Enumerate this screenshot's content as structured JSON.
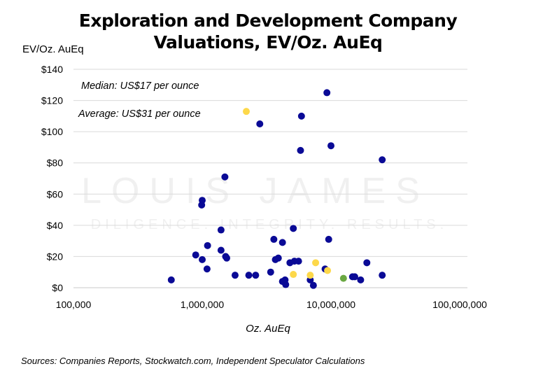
{
  "chart_data": {
    "type": "scatter",
    "title_line1": "Exploration and Development Company",
    "title_line2": "Valuations, EV/Oz. AuEq",
    "xlabel": "Oz. AuEq",
    "ylabel": "EV/Oz. AuEq",
    "xscale": "log",
    "xlim": [
      100000,
      100000000
    ],
    "ylim": [
      0,
      140
    ],
    "x_ticks": [
      100000,
      1000000,
      10000000,
      100000000
    ],
    "x_tick_labels": [
      "100,000",
      "1,000,000",
      "10,000,000",
      "100,000,000"
    ],
    "y_ticks": [
      0,
      20,
      40,
      60,
      80,
      100,
      120,
      140
    ],
    "y_tick_labels": [
      "$0",
      "$20",
      "$40",
      "$60",
      "$80",
      "$100",
      "$120",
      "$140"
    ],
    "grid": "horizontal",
    "annotations": [
      "Median: US$17 per ounce",
      "Average: US$31 per ounce"
    ],
    "source": "Sources: Companies Reports, Stockwatch.com, Independent Speculator Calculations",
    "watermark": [
      "LOUIS JAMES",
      "DILIGENCE. INTEGRITY. RESULTS."
    ],
    "colors": {
      "blue": "#0a0a96",
      "yellow": "#fdd84a",
      "green": "#6aa842",
      "grid": "#d9d9d9"
    },
    "points": [
      {
        "x": 575000,
        "y": 5,
        "c": "blue"
      },
      {
        "x": 890000,
        "y": 21,
        "c": "blue"
      },
      {
        "x": 1000000,
        "y": 18,
        "c": "blue"
      },
      {
        "x": 1100000,
        "y": 27,
        "c": "blue"
      },
      {
        "x": 1090000,
        "y": 12,
        "c": "blue"
      },
      {
        "x": 1000000,
        "y": 56,
        "c": "blue"
      },
      {
        "x": 990000,
        "y": 53,
        "c": "blue"
      },
      {
        "x": 1400000,
        "y": 37,
        "c": "blue"
      },
      {
        "x": 1400000,
        "y": 24,
        "c": "blue"
      },
      {
        "x": 1520000,
        "y": 20,
        "c": "blue"
      },
      {
        "x": 1550000,
        "y": 19,
        "c": "blue"
      },
      {
        "x": 1500000,
        "y": 71,
        "c": "blue"
      },
      {
        "x": 1800000,
        "y": 8,
        "c": "blue"
      },
      {
        "x": 2300000,
        "y": 8,
        "c": "blue"
      },
      {
        "x": 2600000,
        "y": 8,
        "c": "blue"
      },
      {
        "x": 3400000,
        "y": 10,
        "c": "blue"
      },
      {
        "x": 2200000,
        "y": 113,
        "c": "yellow"
      },
      {
        "x": 2800000,
        "y": 105,
        "c": "blue"
      },
      {
        "x": 3600000,
        "y": 31,
        "c": "blue"
      },
      {
        "x": 4200000,
        "y": 29,
        "c": "blue"
      },
      {
        "x": 3700000,
        "y": 18,
        "c": "blue"
      },
      {
        "x": 3900000,
        "y": 19,
        "c": "blue"
      },
      {
        "x": 4200000,
        "y": 4,
        "c": "blue"
      },
      {
        "x": 4400000,
        "y": 5,
        "c": "blue"
      },
      {
        "x": 4450000,
        "y": 2,
        "c": "blue"
      },
      {
        "x": 4800000,
        "y": 16,
        "c": "blue"
      },
      {
        "x": 5200000,
        "y": 17,
        "c": "blue"
      },
      {
        "x": 5600000,
        "y": 17,
        "c": "blue"
      },
      {
        "x": 5100000,
        "y": 38,
        "c": "blue"
      },
      {
        "x": 5900000,
        "y": 110,
        "c": "blue"
      },
      {
        "x": 5800000,
        "y": 88,
        "c": "blue"
      },
      {
        "x": 9300000,
        "y": 125,
        "c": "blue"
      },
      {
        "x": 10000000,
        "y": 91,
        "c": "blue"
      },
      {
        "x": 9600000,
        "y": 31,
        "c": "blue"
      },
      {
        "x": 6900000,
        "y": 5,
        "c": "blue"
      },
      {
        "x": 7300000,
        "y": 1.5,
        "c": "blue"
      },
      {
        "x": 9000000,
        "y": 12,
        "c": "blue"
      },
      {
        "x": 5100000,
        "y": 8.5,
        "c": "yellow"
      },
      {
        "x": 6900000,
        "y": 8,
        "c": "yellow"
      },
      {
        "x": 7600000,
        "y": 16,
        "c": "yellow"
      },
      {
        "x": 9400000,
        "y": 11,
        "c": "yellow"
      },
      {
        "x": 12500000,
        "y": 6,
        "c": "green"
      },
      {
        "x": 14700000,
        "y": 7,
        "c": "blue"
      },
      {
        "x": 15300000,
        "y": 7,
        "c": "blue"
      },
      {
        "x": 17000000,
        "y": 5,
        "c": "blue"
      },
      {
        "x": 19000000,
        "y": 16,
        "c": "blue"
      },
      {
        "x": 25000000,
        "y": 82,
        "c": "blue"
      },
      {
        "x": 25000000,
        "y": 8,
        "c": "blue"
      }
    ]
  }
}
